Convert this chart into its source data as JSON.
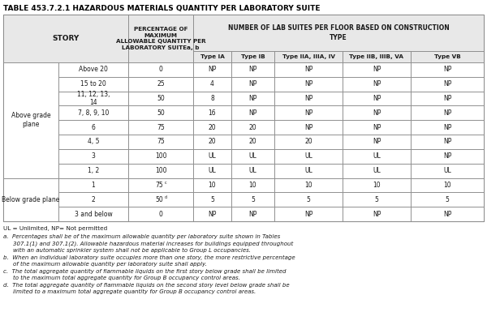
{
  "title": "TABLE 453.7.2.1 HAZARDOUS MATERIALS QUANTITY PER LABORATORY SUITE",
  "sub_headers": [
    "Type IA",
    "Type IB",
    "Type IIA, IIIA, IV",
    "Type IIB, IIIB, VA",
    "Type VB"
  ],
  "rows": [
    {
      "group": "Above grade\nplane",
      "story": "Above 20",
      "pct": "0",
      "vals": [
        "NP",
        "NP",
        "NP",
        "NP",
        "NP"
      ]
    },
    {
      "group": "Above grade\nplane",
      "story": "15 to 20",
      "pct": "25",
      "vals": [
        "4",
        "NP",
        "NP",
        "NP",
        "NP"
      ]
    },
    {
      "group": "Above grade\nplane",
      "story": "11, 12, 13,\n14",
      "pct": "50",
      "vals": [
        "8",
        "NP",
        "NP",
        "NP",
        "NP"
      ]
    },
    {
      "group": "Above grade\nplane",
      "story": "7, 8, 9, 10",
      "pct": "50",
      "vals": [
        "16",
        "NP",
        "NP",
        "NP",
        "NP"
      ]
    },
    {
      "group": "Above grade\nplane",
      "story": "6",
      "pct": "75",
      "vals": [
        "20",
        "20",
        "NP",
        "NP",
        "NP"
      ]
    },
    {
      "group": "Above grade\nplane",
      "story": "4, 5",
      "pct": "75",
      "vals": [
        "20",
        "20",
        "20",
        "NP",
        "NP"
      ]
    },
    {
      "group": "Above grade\nplane",
      "story": "3",
      "pct": "100",
      "vals": [
        "UL",
        "UL",
        "UL",
        "UL",
        "NP"
      ]
    },
    {
      "group": "Above grade\nplane",
      "story": "1, 2",
      "pct": "100",
      "vals": [
        "UL",
        "UL",
        "UL",
        "UL",
        "UL"
      ]
    },
    {
      "group": "Below grade plane",
      "story": "1",
      "pct": "75c",
      "vals": [
        "10",
        "10",
        "10",
        "10",
        "10"
      ]
    },
    {
      "group": "Below grade plane",
      "story": "2",
      "pct": "50d",
      "vals": [
        "5",
        "5",
        "5",
        "5",
        "5"
      ]
    },
    {
      "group": "Below grade plane",
      "story": "3 and below",
      "pct": "0",
      "vals": [
        "NP",
        "NP",
        "NP",
        "NP",
        "NP"
      ]
    }
  ],
  "footnote_line0": "UL = Unlimited, NP= Not permitted",
  "footnotes": [
    [
      "a.",
      "Percentages shall be of the maximum allowable quantity per laboratory suite shown in Tables 307.1(1) and 307.1(2). Allowable hazardous material increases for buildings equipped throughout with an automatic sprinkler system shall not be applicable to Group L occupancies."
    ],
    [
      "b.",
      "When an individual laboratory suite occupies more than one story, the more restrictive percentage of the maximum allowable quantity per laboratory suite shall apply."
    ],
    [
      "c.",
      "The total aggregate quantity of flammable liquids on the first story below grade shall be limited to the maximum total aggregate quantity for Group B occupancy control areas."
    ],
    [
      "d.",
      "The total aggregate quantity of flammable liquids on the second story level below grade shall be limited to a maximum total aggregate quantity for Group B occupancy control areas."
    ]
  ],
  "header_bg": "#e8e8e8",
  "bg": "white",
  "border_color": "#888888",
  "text_color": "#1a1a1a"
}
